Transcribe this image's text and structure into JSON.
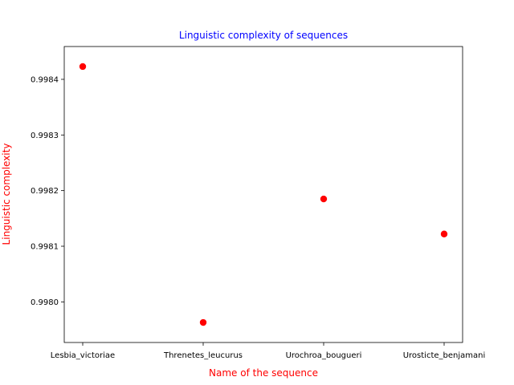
{
  "chart_data": {
    "type": "scatter",
    "title": "Linguistic complexity of sequences",
    "xlabel": "Name of the sequence",
    "ylabel": "Linguistic complexity",
    "categories": [
      "Lesbia_victoriae",
      "Threnetes_leucurus",
      "Urochroa_bougueri",
      "Urosticte_benjamani"
    ],
    "values": [
      0.998423,
      0.997963,
      0.998185,
      0.998122
    ],
    "yticks": [
      "0.9980",
      "0.9981",
      "0.9982",
      "0.9983",
      "0.9984"
    ],
    "ylim": [
      0.997927,
      0.998459
    ],
    "grid": false,
    "marker_color": "#ff0000",
    "title_color": "#0000ff",
    "label_color": "#ff0000"
  }
}
